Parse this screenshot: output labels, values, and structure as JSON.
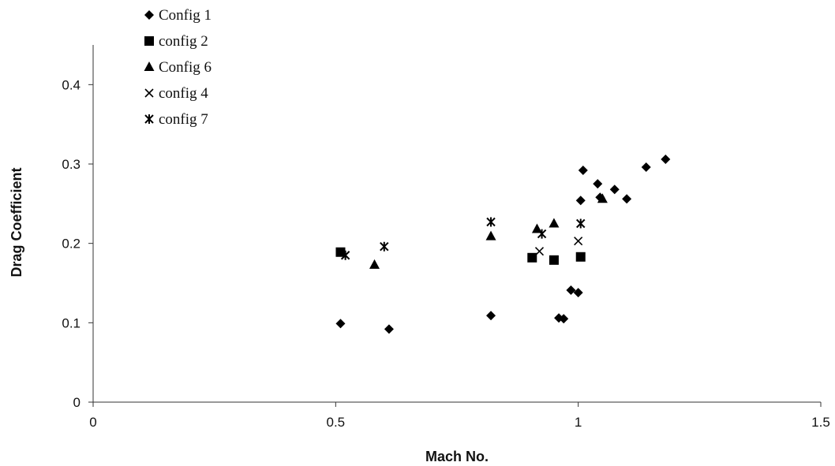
{
  "chart_data": {
    "type": "scatter",
    "title": "",
    "xlabel": "Mach No.",
    "ylabel": "Drag Coefficient",
    "xlim": [
      0,
      1.5
    ],
    "ylim": [
      0,
      0.45
    ],
    "xticks": [
      "0",
      "0.5",
      "1",
      "1.5"
    ],
    "yticks": [
      "0",
      "0.1",
      "0.2",
      "0.3",
      "0.4"
    ],
    "grid": false,
    "legend_position": "top-left",
    "series": [
      {
        "name": "Config 1",
        "marker": "diamond",
        "points": [
          [
            0.51,
            0.099
          ],
          [
            0.61,
            0.092
          ],
          [
            0.82,
            0.109
          ],
          [
            0.96,
            0.106
          ],
          [
            0.97,
            0.105
          ],
          [
            0.985,
            0.141
          ],
          [
            1.0,
            0.138
          ],
          [
            1.005,
            0.254
          ],
          [
            1.01,
            0.292
          ],
          [
            1.04,
            0.275
          ],
          [
            1.045,
            0.258
          ],
          [
            1.075,
            0.268
          ],
          [
            1.1,
            0.256
          ],
          [
            1.14,
            0.296
          ],
          [
            1.18,
            0.306
          ]
        ]
      },
      {
        "name": "config 2",
        "marker": "square",
        "points": [
          [
            0.51,
            0.189
          ],
          [
            0.905,
            0.182
          ],
          [
            0.95,
            0.179
          ],
          [
            1.005,
            0.183
          ]
        ]
      },
      {
        "name": "Config 6",
        "marker": "triangle",
        "points": [
          [
            0.58,
            0.173
          ],
          [
            0.82,
            0.209
          ],
          [
            0.915,
            0.218
          ],
          [
            0.95,
            0.225
          ],
          [
            1.05,
            0.256
          ]
        ]
      },
      {
        "name": "config 4",
        "marker": "x",
        "points": [
          [
            0.92,
            0.19
          ],
          [
            1.0,
            0.203
          ]
        ]
      },
      {
        "name": "config 7",
        "marker": "asterisk",
        "points": [
          [
            0.52,
            0.185
          ],
          [
            0.6,
            0.196
          ],
          [
            0.82,
            0.227
          ],
          [
            0.925,
            0.212
          ],
          [
            1.005,
            0.225
          ]
        ]
      }
    ]
  }
}
